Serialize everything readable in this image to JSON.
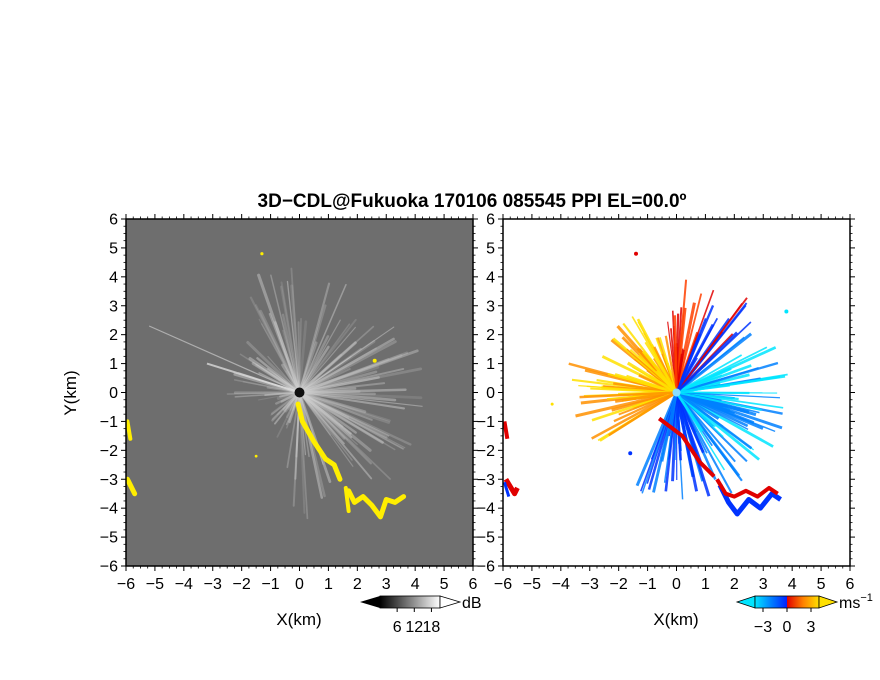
{
  "title": "3D−CDL@Fukuoka 170106 085545 PPI EL=00.0º",
  "ylabel": "Y(km)",
  "colors": {
    "background_noise": "#2a2a2a",
    "echo_yellow": "#ffee00",
    "vel_negative": [
      "#00e5ff",
      "#0080ff",
      "#0033ff"
    ],
    "vel_positive": [
      "#ffe000",
      "#ff9000",
      "#ff4000",
      "#e00000"
    ]
  },
  "chart_data": [
    {
      "type": "heatmap",
      "panel": "reflectivity",
      "xlabel": "X(km)",
      "ylabel": "Y(km)",
      "xlim": [
        -6,
        6
      ],
      "ylim": [
        -6,
        6
      ],
      "xticks": [
        "−6",
        "−5",
        "−4",
        "−3",
        "−2",
        "−1",
        "0",
        "1",
        "2",
        "3",
        "4",
        "5",
        "6"
      ],
      "yticks": [
        "6",
        "5",
        "4",
        "3",
        "2",
        "1",
        "0",
        "−1",
        "−2",
        "−3",
        "−4",
        "−5",
        "−6"
      ],
      "colorbar": {
        "unit": "dB",
        "ticks": [
          "6",
          "12",
          "18"
        ],
        "range": [
          0,
          21
        ]
      },
      "yellow_echo_regions": [
        {
          "x": [
            -0.1,
            1.5
          ],
          "y": [
            -0.4,
            -3.0
          ]
        },
        {
          "x": [
            1.5,
            3.7
          ],
          "y": [
            -3.0,
            -4.3
          ]
        },
        {
          "x": [
            -6.0,
            -5.7
          ],
          "y": [
            -1.0,
            -3.7
          ]
        }
      ]
    },
    {
      "type": "heatmap",
      "panel": "radial_velocity",
      "xlabel": "X(km)",
      "xlim": [
        -6,
        6
      ],
      "ylim": [
        -6,
        6
      ],
      "xticks": [
        "−6",
        "−5",
        "−4",
        "−3",
        "−2",
        "−1",
        "0",
        "1",
        "2",
        "3",
        "4",
        "5",
        "6"
      ],
      "yticks": [
        "6",
        "5",
        "4",
        "3",
        "2",
        "1",
        "0",
        "−1",
        "−2",
        "−3",
        "−4",
        "−5",
        "−6"
      ],
      "colorbar": {
        "unit": "ms",
        "unit_exponent": "−1",
        "ticks": [
          "−3",
          "0",
          "3"
        ],
        "range": [
          -4,
          4
        ]
      },
      "velocity_regions": [
        {
          "sector": "west",
          "velocity": 2.0
        },
        {
          "sector": "north-northwest",
          "velocity": 2.5
        },
        {
          "sector": "north",
          "velocity": 3.5
        },
        {
          "sector": "east-southeast",
          "velocity": -2.5
        },
        {
          "sector": "northeast",
          "velocity": -3.5
        }
      ]
    }
  ]
}
